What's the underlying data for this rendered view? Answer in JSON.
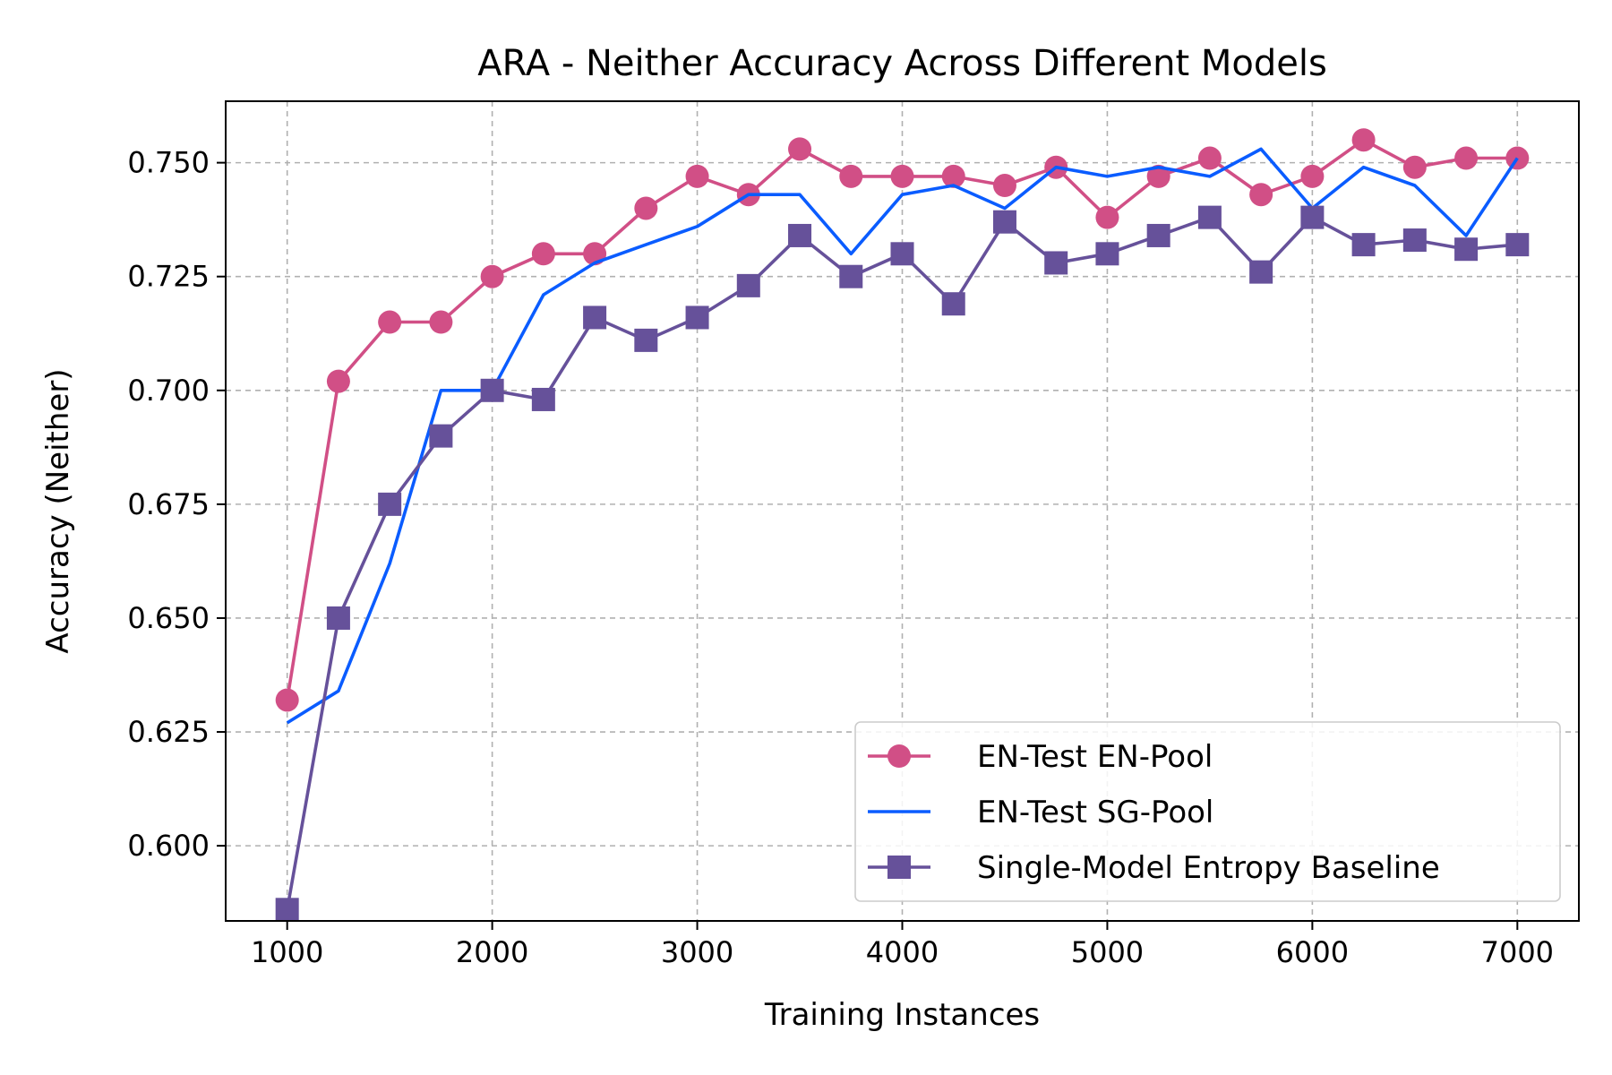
{
  "chart_data": {
    "type": "line",
    "title": "ARA - Neither Accuracy Across Different Models",
    "xlabel": "Training Instances",
    "ylabel": "Accuracy (Neither)",
    "xlim": [
      700,
      7300
    ],
    "ylim": [
      0.5835,
      0.7635
    ],
    "xticks": [
      1000,
      2000,
      3000,
      4000,
      5000,
      6000,
      7000
    ],
    "yticks": [
      0.6,
      0.625,
      0.65,
      0.675,
      0.7,
      0.725,
      0.75
    ],
    "xtick_labels": [
      "1000",
      "2000",
      "3000",
      "4000",
      "5000",
      "6000",
      "7000"
    ],
    "ytick_labels": [
      "0.600",
      "0.625",
      "0.650",
      "0.675",
      "0.700",
      "0.725",
      "0.750"
    ],
    "grid": true,
    "legend_position": "lower-right",
    "x": [
      1000,
      1250,
      1500,
      1750,
      2000,
      2250,
      2500,
      2750,
      3000,
      3250,
      3500,
      3750,
      4000,
      4250,
      4500,
      4750,
      5000,
      5250,
      5500,
      5750,
      6000,
      6250,
      6500,
      6750,
      7000
    ],
    "series": [
      {
        "name": "EN-Test EN-Pool",
        "color": "#d14f86",
        "marker": "circle",
        "values": [
          0.632,
          0.702,
          0.715,
          0.715,
          0.725,
          0.73,
          0.73,
          0.74,
          0.747,
          0.743,
          0.753,
          0.747,
          0.747,
          0.747,
          0.745,
          0.749,
          0.738,
          0.747,
          0.751,
          0.743,
          0.747,
          0.755,
          0.749,
          0.751,
          0.751
        ]
      },
      {
        "name": "EN-Test SG-Pool",
        "color": "#0a5cff",
        "marker": "none",
        "values": [
          0.627,
          0.634,
          0.662,
          0.7,
          0.7,
          0.721,
          0.728,
          0.732,
          0.736,
          0.743,
          0.743,
          0.73,
          0.743,
          0.745,
          0.74,
          0.749,
          0.747,
          0.749,
          0.747,
          0.753,
          0.74,
          0.749,
          0.745,
          0.734,
          0.751
        ]
      },
      {
        "name": "Single-Model Entropy Baseline",
        "color": "#66519a",
        "marker": "square",
        "values": [
          0.586,
          0.65,
          0.675,
          0.69,
          0.7,
          0.698,
          0.716,
          0.711,
          0.716,
          0.723,
          0.734,
          0.725,
          0.73,
          0.719,
          0.737,
          0.728,
          0.73,
          0.734,
          0.738,
          0.726,
          0.738,
          0.732,
          0.733,
          0.731,
          0.732
        ]
      }
    ]
  }
}
